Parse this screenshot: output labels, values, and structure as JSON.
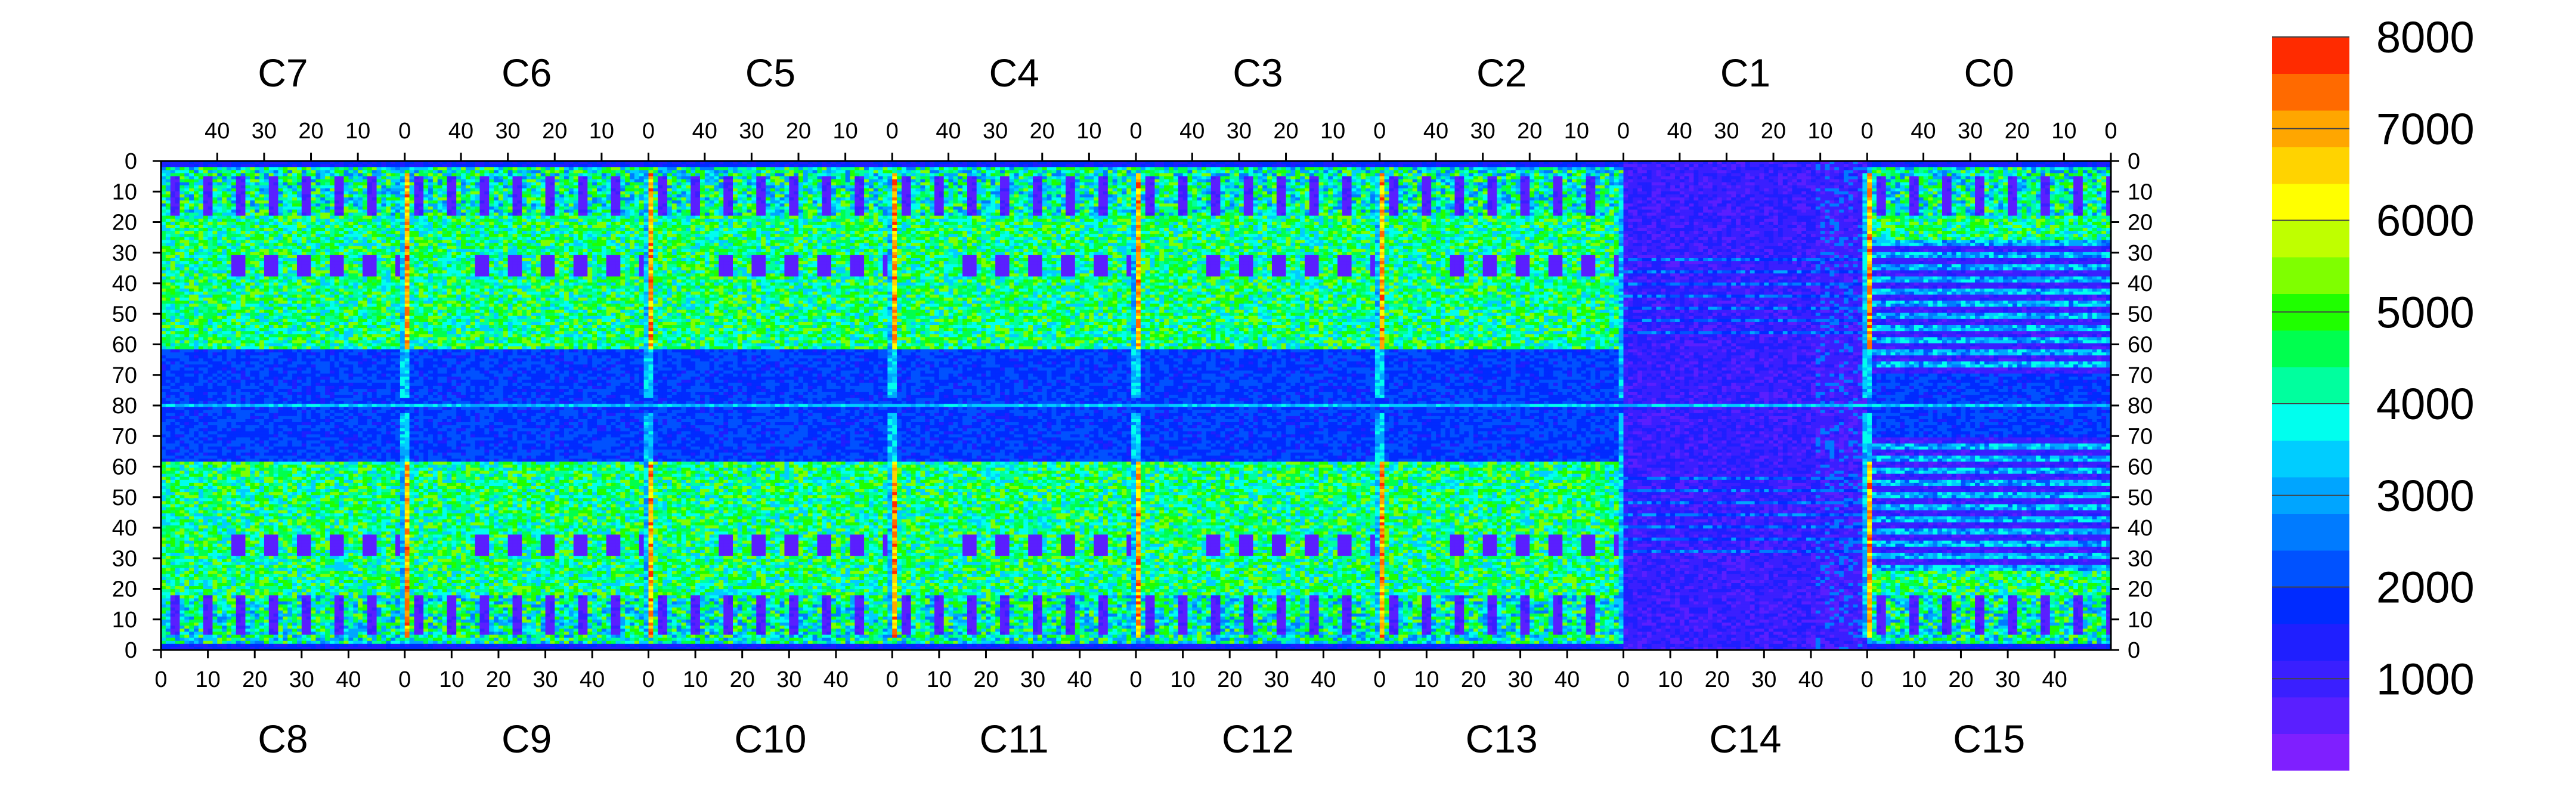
{
  "chart_data": {
    "type": "heatmap",
    "title": "",
    "xlabel": "",
    "ylabel": "",
    "top_chips": [
      "C7",
      "C6",
      "C5",
      "C4",
      "C3",
      "C2",
      "C1",
      "C0"
    ],
    "bottom_chips": [
      "C8",
      "C9",
      "C10",
      "C11",
      "C12",
      "C13",
      "C14",
      "C15"
    ],
    "top_x_ticks": [
      "40",
      "30",
      "20",
      "10",
      "0"
    ],
    "bottom_x_ticks": [
      "0",
      "10",
      "20",
      "30",
      "40"
    ],
    "chip_columns": 52,
    "rows_per_half": 80,
    "y_ticks": [
      "0",
      "10",
      "20",
      "30",
      "40",
      "50",
      "60",
      "70",
      "80",
      "70",
      "60",
      "50",
      "40",
      "30",
      "20",
      "10",
      "0"
    ],
    "colorbar": {
      "min": 0,
      "max": 8000,
      "levels": 20,
      "tick_labels": [
        "8000",
        "7000",
        "6000",
        "5000",
        "4000",
        "3000",
        "2000",
        "1000"
      ],
      "tick_values": [
        8000,
        7000,
        6000,
        5000,
        4000,
        3000,
        2000,
        1000
      ],
      "colors": [
        "#7f1fff",
        "#5a1fff",
        "#3a1fff",
        "#1f1fff",
        "#002bff",
        "#0052ff",
        "#007bff",
        "#00a5ff",
        "#00cdff",
        "#00ffee",
        "#00ff9e",
        "#00ff4f",
        "#1fff00",
        "#7fff00",
        "#bfff00",
        "#ffff00",
        "#ffd300",
        "#ffa600",
        "#ff6a00",
        "#ff2b00"
      ]
    },
    "approximate_features": {
      "typical_level_top_band": 4000,
      "typical_level_middle_band": 1500,
      "high_level_column_strips": 7500,
      "low_level_pads": 500,
      "low_level_right_region": 600
    }
  }
}
